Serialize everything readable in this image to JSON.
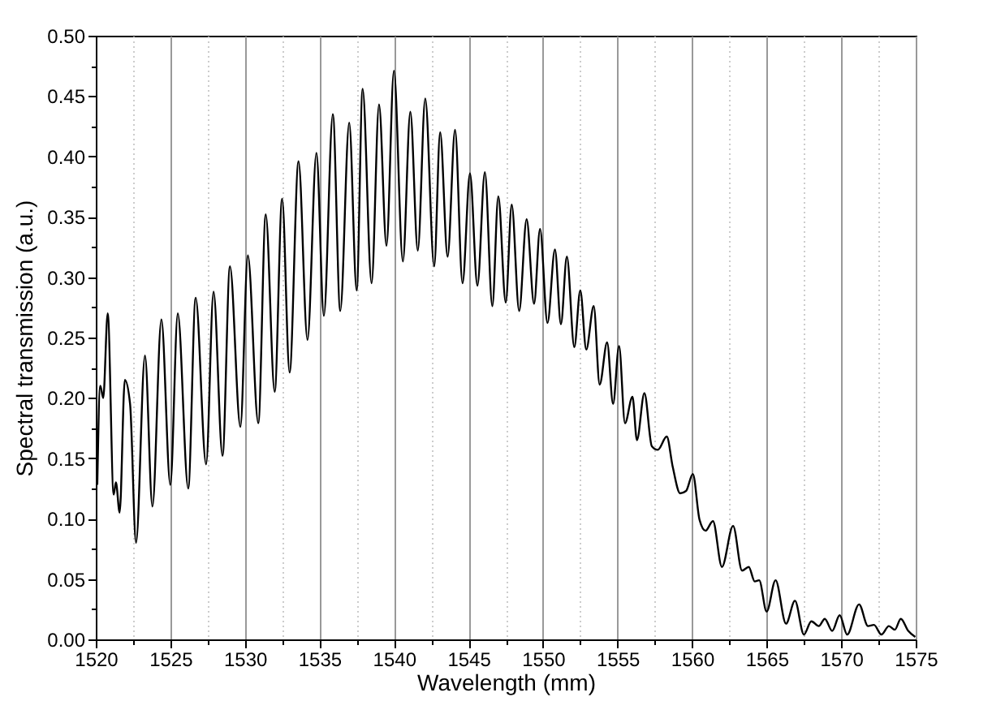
{
  "chart_data": {
    "type": "line",
    "xlabel": "Wavelength (mm)",
    "ylabel": "Spectral transmission (a.u.)",
    "x": [
      1520.1,
      1520.3,
      1520.5,
      1520.8,
      1521.2,
      1521.35,
      1521.6,
      1521.95,
      1522.3,
      1522.7,
      1523.3,
      1523.8,
      1524.4,
      1525.0,
      1525.5,
      1526.2,
      1526.7,
      1527.4,
      1527.9,
      1528.5,
      1529.0,
      1529.7,
      1530.2,
      1530.9,
      1531.4,
      1532.0,
      1532.5,
      1533.0,
      1533.6,
      1534.2,
      1534.8,
      1535.3,
      1535.9,
      1536.4,
      1537.0,
      1537.5,
      1537.9,
      1538.5,
      1539.0,
      1539.5,
      1540.0,
      1540.6,
      1541.1,
      1541.6,
      1542.1,
      1542.7,
      1543.1,
      1543.6,
      1544.1,
      1544.6,
      1545.1,
      1545.6,
      1546.1,
      1546.6,
      1547.0,
      1547.5,
      1547.9,
      1548.4,
      1548.9,
      1549.4,
      1549.8,
      1550.3,
      1550.8,
      1551.2,
      1551.6,
      1552.1,
      1552.5,
      1552.9,
      1553.4,
      1553.8,
      1554.3,
      1554.7,
      1555.1,
      1555.5,
      1556.0,
      1556.3,
      1556.8,
      1557.3,
      1557.7,
      1558.3,
      1558.7,
      1559.2,
      1559.6,
      1560.05,
      1560.5,
      1560.9,
      1561.4,
      1562.0,
      1562.75,
      1563.35,
      1563.8,
      1564.2,
      1564.5,
      1565.0,
      1565.6,
      1566.3,
      1566.9,
      1567.5,
      1568.0,
      1568.5,
      1568.9,
      1569.4,
      1569.9,
      1570.4,
      1571.2,
      1571.8,
      1572.2,
      1572.7,
      1573.2,
      1573.6,
      1574.0,
      1574.5,
      1574.97
    ],
    "series": [
      {
        "color": "#000000",
        "values": [
          0.128,
          0.21,
          0.2,
          0.27,
          0.12,
          0.13,
          0.105,
          0.215,
          0.195,
          0.08,
          0.235,
          0.11,
          0.265,
          0.128,
          0.27,
          0.125,
          0.283,
          0.145,
          0.288,
          0.152,
          0.309,
          0.176,
          0.318,
          0.179,
          0.352,
          0.205,
          0.365,
          0.221,
          0.396,
          0.248,
          0.403,
          0.268,
          0.435,
          0.272,
          0.428,
          0.289,
          0.456,
          0.295,
          0.443,
          0.326,
          0.471,
          0.313,
          0.437,
          0.322,
          0.448,
          0.309,
          0.42,
          0.317,
          0.422,
          0.295,
          0.386,
          0.293,
          0.387,
          0.276,
          0.367,
          0.279,
          0.36,
          0.272,
          0.348,
          0.278,
          0.34,
          0.262,
          0.323,
          0.261,
          0.317,
          0.242,
          0.289,
          0.24,
          0.276,
          0.211,
          0.246,
          0.195,
          0.243,
          0.179,
          0.201,
          0.165,
          0.204,
          0.16,
          0.157,
          0.168,
          0.143,
          0.121,
          0.123,
          0.137,
          0.099,
          0.09,
          0.098,
          0.06,
          0.094,
          0.057,
          0.06,
          0.048,
          0.049,
          0.023,
          0.049,
          0.013,
          0.032,
          0.004,
          0.015,
          0.011,
          0.017,
          0.007,
          0.02,
          0.004,
          0.029,
          0.011,
          0.012,
          0.004,
          0.011,
          0.008,
          0.017,
          0.007,
          0.002
        ]
      }
    ],
    "xlim": [
      1520,
      1575
    ],
    "xticks": [
      1520,
      {
        "value": 1522.5,
        "label": null
      },
      1525,
      {
        "value": 1527.5,
        "label": null
      },
      1530,
      {
        "value": 1532.5,
        "label": null
      },
      1535,
      {
        "value": 1537.5,
        "label": null
      },
      1540,
      {
        "value": 1542.5,
        "label": null
      },
      1545,
      {
        "value": 1547.5,
        "label": null
      },
      1550,
      {
        "value": 1552.5,
        "label": null
      },
      1555,
      {
        "value": 1557.5,
        "label": null
      },
      1560,
      {
        "value": 1562.5,
        "label": null
      },
      1565,
      {
        "value": 1567.5,
        "label": null
      },
      1570,
      {
        "value": 1572.5,
        "label": null
      },
      1575
    ],
    "ylim": [
      0,
      0.5
    ],
    "yticks": [
      {
        "value": 0,
        "label": "0.00"
      },
      {
        "value": 0.025,
        "label": null
      },
      {
        "value": 0.05,
        "label": "0.05"
      },
      {
        "value": 0.075,
        "label": null
      },
      {
        "value": 0.1,
        "label": "0.10"
      },
      {
        "value": 0.125,
        "label": null
      },
      {
        "value": 0.15,
        "label": "0.15"
      },
      {
        "value": 0.175,
        "label": null
      },
      {
        "value": 0.2,
        "label": "0.20"
      },
      {
        "value": 0.225,
        "label": null
      },
      {
        "value": 0.25,
        "label": "0.25"
      },
      {
        "value": 0.275,
        "label": null
      },
      {
        "value": 0.3,
        "label": "0.30"
      },
      {
        "value": 0.325,
        "label": null
      },
      {
        "value": 0.35,
        "label": "0.35"
      },
      {
        "value": 0.375,
        "label": null
      },
      {
        "value": 0.4,
        "label": "0.40"
      },
      {
        "value": 0.425,
        "label": null
      },
      {
        "value": 0.45,
        "label": "0.45"
      },
      {
        "value": 0.475,
        "label": null
      },
      {
        "value": 0.5,
        "label": "0.50"
      }
    ],
    "grid": "x",
    "line_style": "solid"
  }
}
